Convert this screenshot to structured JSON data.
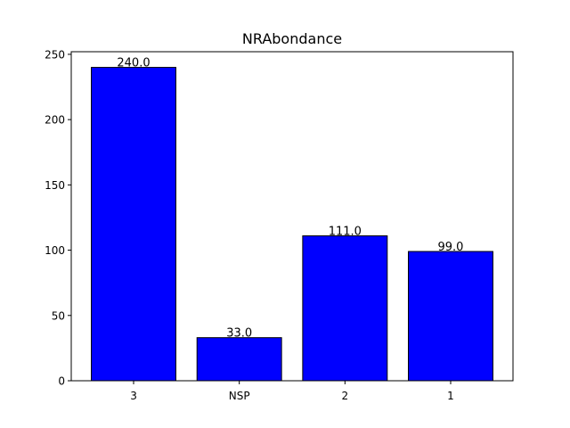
{
  "chart_data": {
    "type": "bar",
    "title": "NRAbondance",
    "xlabel": "",
    "ylabel": "",
    "categories": [
      "3",
      "NSP",
      "2",
      "1"
    ],
    "values": [
      240.0,
      33.0,
      111.0,
      99.0
    ],
    "data_labels": [
      "240.0",
      "33.0",
      "111.0",
      "99.0"
    ],
    "ylim": [
      0,
      252
    ],
    "yticks": [
      0,
      50,
      100,
      150,
      200,
      250
    ],
    "grid": false,
    "legend": "none",
    "bar_color": "#0000ff",
    "edge_color": "#000000"
  }
}
